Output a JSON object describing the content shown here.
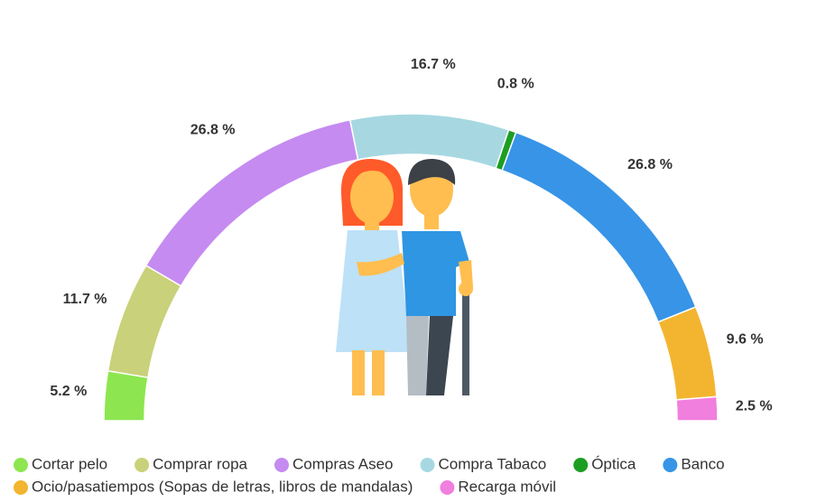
{
  "chart_data": {
    "type": "semi-donut",
    "categories": [
      "Cortar pelo",
      "Comprar ropa",
      "Compras Aseo",
      "Compra Tabaco",
      "Óptica",
      "Banco",
      "Ocio/pasatiempos (Sopas de letras, libros de mandalas)",
      "Recarga móvil"
    ],
    "values": [
      5.2,
      11.7,
      26.8,
      16.7,
      0.8,
      26.8,
      9.6,
      2.5
    ],
    "value_labels": [
      "5.2 %",
      "11.7 %",
      "26.8 %",
      "16.7 %",
      "0.8 %",
      "26.8 %",
      "9.6 %",
      "2.5 %"
    ],
    "colors": [
      "#8de650",
      "#c9d17a",
      "#c58bf1",
      "#a7d8e1",
      "#1c9e23",
      "#3794e7",
      "#f3b530",
      "#f17fde"
    ],
    "legend": "bottom"
  }
}
